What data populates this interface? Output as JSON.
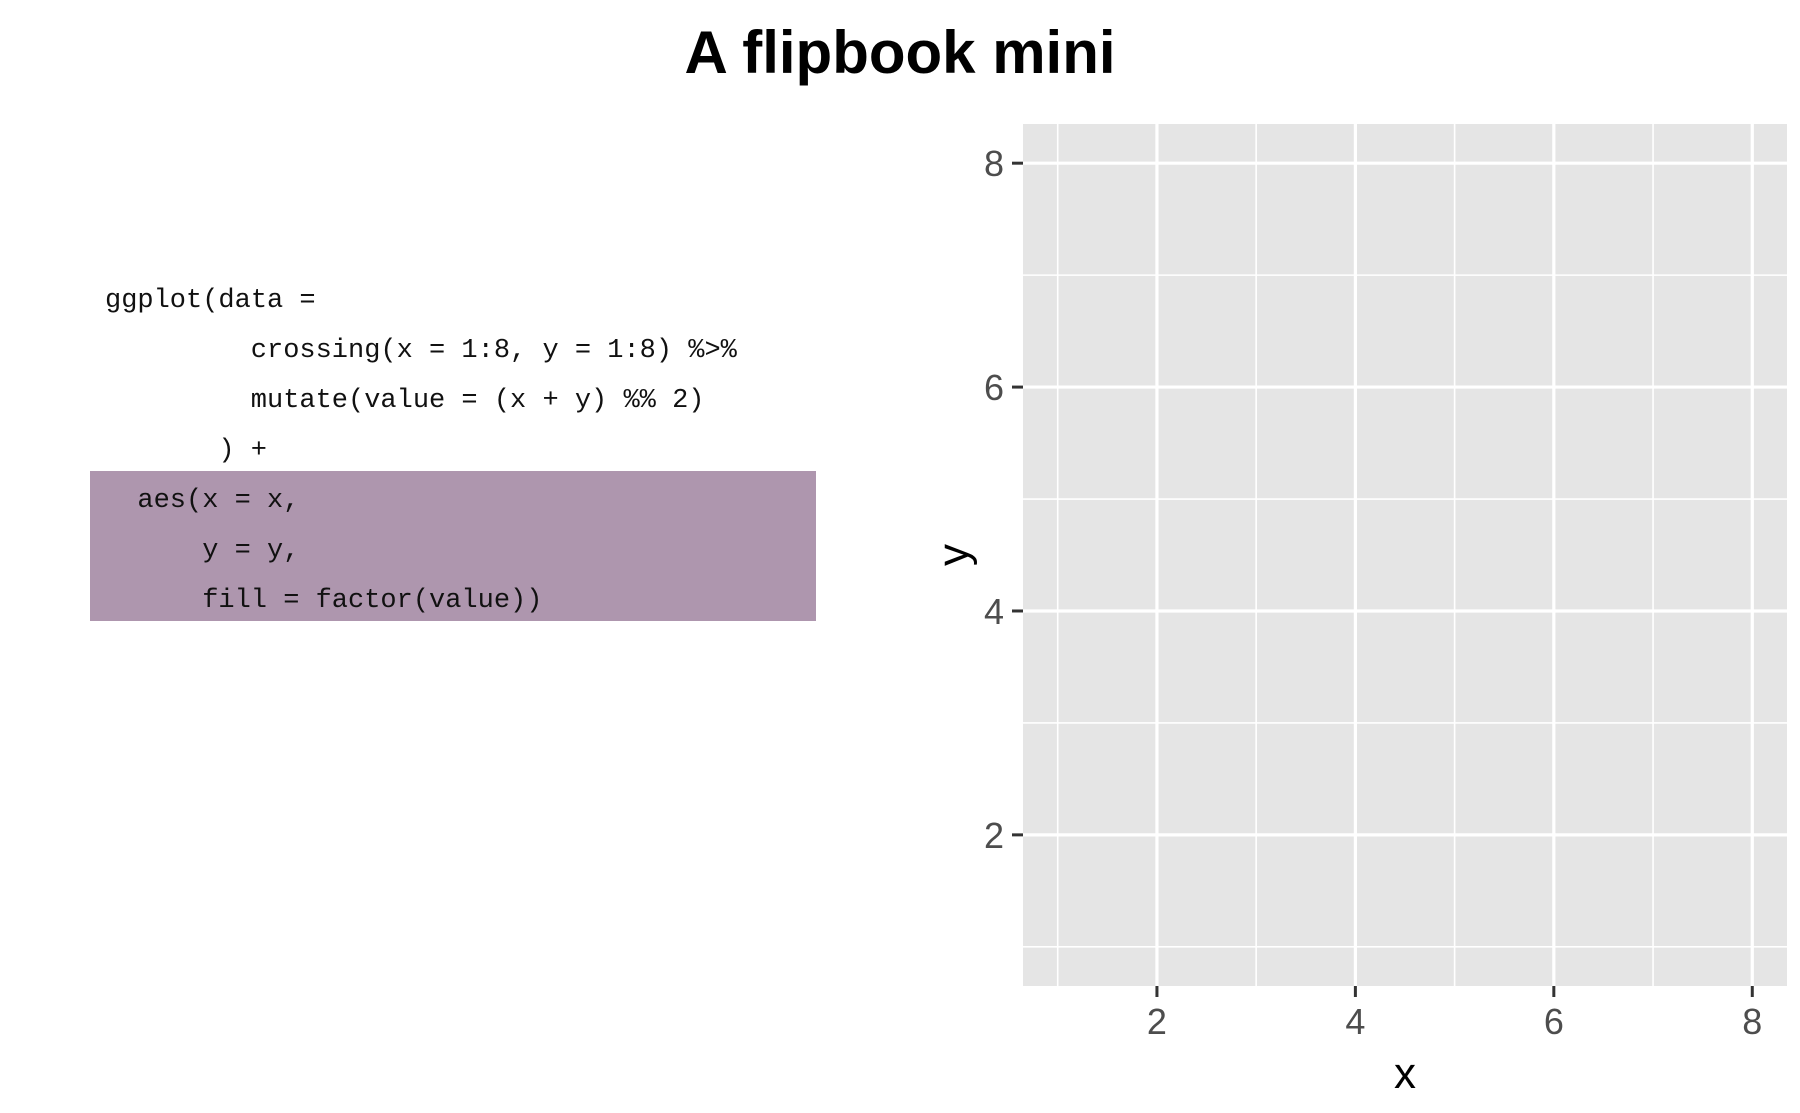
{
  "page": {
    "title": "A flipbook mini"
  },
  "code": {
    "highlight_color": "#ae96ae",
    "lines": [
      {
        "text": "ggplot(data =",
        "indent": 0,
        "highlighted": false
      },
      {
        "text": "crossing(x = 1:8, y = 1:8) %>%",
        "indent": 9,
        "highlighted": false
      },
      {
        "text": "mutate(value = (x + y) %% 2)",
        "indent": 9,
        "highlighted": false
      },
      {
        "text": ") +",
        "indent": 7,
        "highlighted": false
      },
      {
        "text": "aes(x = x,",
        "indent": 2,
        "highlighted": true
      },
      {
        "text": "y = y,",
        "indent": 6,
        "highlighted": true
      },
      {
        "text": "fill = factor(value))",
        "indent": 6,
        "highlighted": true
      }
    ]
  },
  "chart_data": {
    "type": "scatter",
    "series": [],
    "xlabel": "x",
    "ylabel": "y",
    "xlim": [
      0.65,
      8.35
    ],
    "ylim": [
      0.65,
      8.35
    ],
    "x_ticks": [
      2,
      4,
      6,
      8
    ],
    "y_ticks": [
      2,
      4,
      6,
      8
    ],
    "x_minor": [
      1,
      3,
      5,
      7
    ],
    "y_minor": [
      1,
      3,
      5,
      7
    ],
    "grid": true,
    "panel_background": "#e5e5e5",
    "grid_color": "#ffffff",
    "tick_label_color": "#4d4d4d",
    "axis_title_color": "#000000"
  }
}
